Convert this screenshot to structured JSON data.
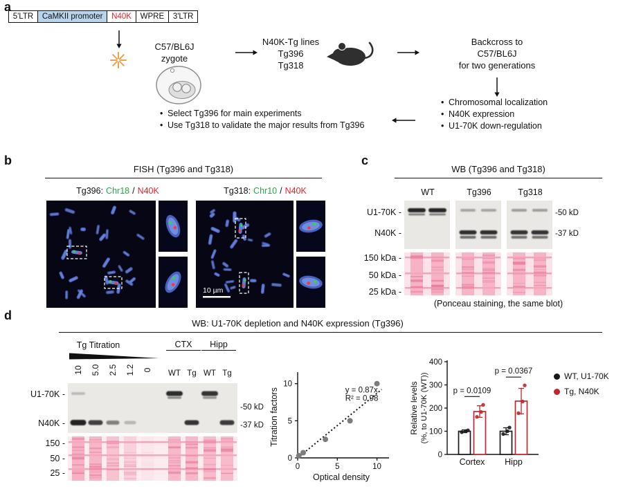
{
  "colors": {
    "accent_red": "#e0252a",
    "accent_green": "#2aa648",
    "promoter_blue": "#b9d5ee",
    "ponceau_pink": "#f5a7bd",
    "blot_grey": "#e9e8e5",
    "tg_red": "#c0272d",
    "wt_black": "#1a1a1a",
    "scatter_grey": "#7c7c7c",
    "fish_background": "#060614",
    "chromosome_blue": "#4f6cd6"
  },
  "panel_a": {
    "label": "a",
    "construct": [
      "5'LTR",
      "CaMKII promoter",
      "N40K",
      "WPRE",
      "3'LTR"
    ],
    "zygote": [
      "C57/BL6J",
      "zygote"
    ],
    "tg_lines": [
      "N40K-Tg lines",
      "Tg396",
      "Tg318"
    ],
    "backcross": [
      "Backcross to",
      "C57/BL6J",
      "for two generations"
    ],
    "checks": [
      "Chromosomal localization",
      "N40K expression",
      "U1-70K down-regulation"
    ],
    "decisions": [
      "Select Tg396 for main experiments",
      "Use Tg318 to validate the major results from Tg396"
    ],
    "icons": {
      "mouse_icon": "mouse-silhouette",
      "zygote_icon": "zygote-cell",
      "injection_icon": "sparkle-burst",
      "arrow_icon": "flow-arrow"
    }
  },
  "panel_b": {
    "label": "b",
    "title": "FISH (Tg396 and Tg318)",
    "left_caption": {
      "prefix": "Tg396:",
      "chr": "Chr18",
      "sep": "/",
      "gene": "N40K"
    },
    "right_caption": {
      "prefix": "Tg318:",
      "chr": "Chr10",
      "sep": "/",
      "gene": "N40K"
    },
    "scale_bar": "10 µm"
  },
  "panel_c": {
    "label": "c",
    "title": "WB (Tg396 and Tg318)",
    "lanes": [
      "WT",
      "Tg396",
      "Tg318"
    ],
    "rows": [
      "U1-70K -",
      "N40K -"
    ],
    "mw": [
      "-50 kD",
      "-37 kD"
    ],
    "ponceau": [
      "150 kDa -",
      "50 kDa -",
      "25 kDa -"
    ],
    "caption": "(Ponceau staining, the same blot)"
  },
  "panel_d": {
    "label": "d",
    "title": "WB: U1-70K depletion and N40K expression (Tg396)",
    "titration_label": "Tg Titration",
    "titration_values": [
      "10",
      "5.0",
      "2.5",
      "1.2",
      "0"
    ],
    "groups": [
      "CTX",
      "Hipp"
    ],
    "group_lanes": [
      "WT",
      "Tg",
      "WT",
      "Tg"
    ],
    "rows": [
      "U1-70K -",
      "N40K -"
    ],
    "mw": [
      "-50 kD",
      "-37 kD"
    ],
    "ponceau": [
      "150 -",
      "50 -",
      "25 -"
    ]
  },
  "chart_data": [
    {
      "type": "scatter",
      "title": "",
      "xlabel": "Optical density",
      "ylabel": "Titration factors",
      "xlim": [
        0,
        11
      ],
      "ylim": [
        0,
        11
      ],
      "xticks": [
        0,
        5,
        10
      ],
      "yticks": [
        0,
        5,
        10
      ],
      "points": [
        [
          0.15,
          0.3
        ],
        [
          0.7,
          0.7
        ],
        [
          3.5,
          2.5
        ],
        [
          6.6,
          5.0
        ],
        [
          10.0,
          10.0
        ]
      ],
      "fit": {
        "equation": "y = 0.87x",
        "r2": "R² = 0.98",
        "slope": 0.87,
        "style": "dotted"
      },
      "point_color": "#7c7c7c",
      "grid": false,
      "legend": "none"
    },
    {
      "type": "bar",
      "categories": [
        "Cortex",
        "Hipp"
      ],
      "series": [
        {
          "name": "WT, U1-70K",
          "color": "#1a1a1a",
          "values": [
            100,
            100
          ],
          "errors": [
            6,
            15
          ],
          "points": [
            [
              96,
              100,
              104
            ],
            [
              88,
              100,
              116
            ]
          ]
        },
        {
          "name": "Tg, N40K",
          "color": "#c0272d",
          "values": [
            185,
            230
          ],
          "errors": [
            25,
            55
          ],
          "points": [
            [
              162,
              183,
              214
            ],
            [
              178,
              228,
              298
            ]
          ]
        }
      ],
      "ylabel": [
        "Relative levels",
        "(%, to U1-70K (WT))"
      ],
      "ylim": [
        0,
        400
      ],
      "yticks": [
        0,
        100,
        200,
        300,
        400
      ],
      "p_values": [
        "p = 0.0109",
        "p = 0.0367"
      ],
      "grid": false,
      "legend_position": "right"
    }
  ]
}
